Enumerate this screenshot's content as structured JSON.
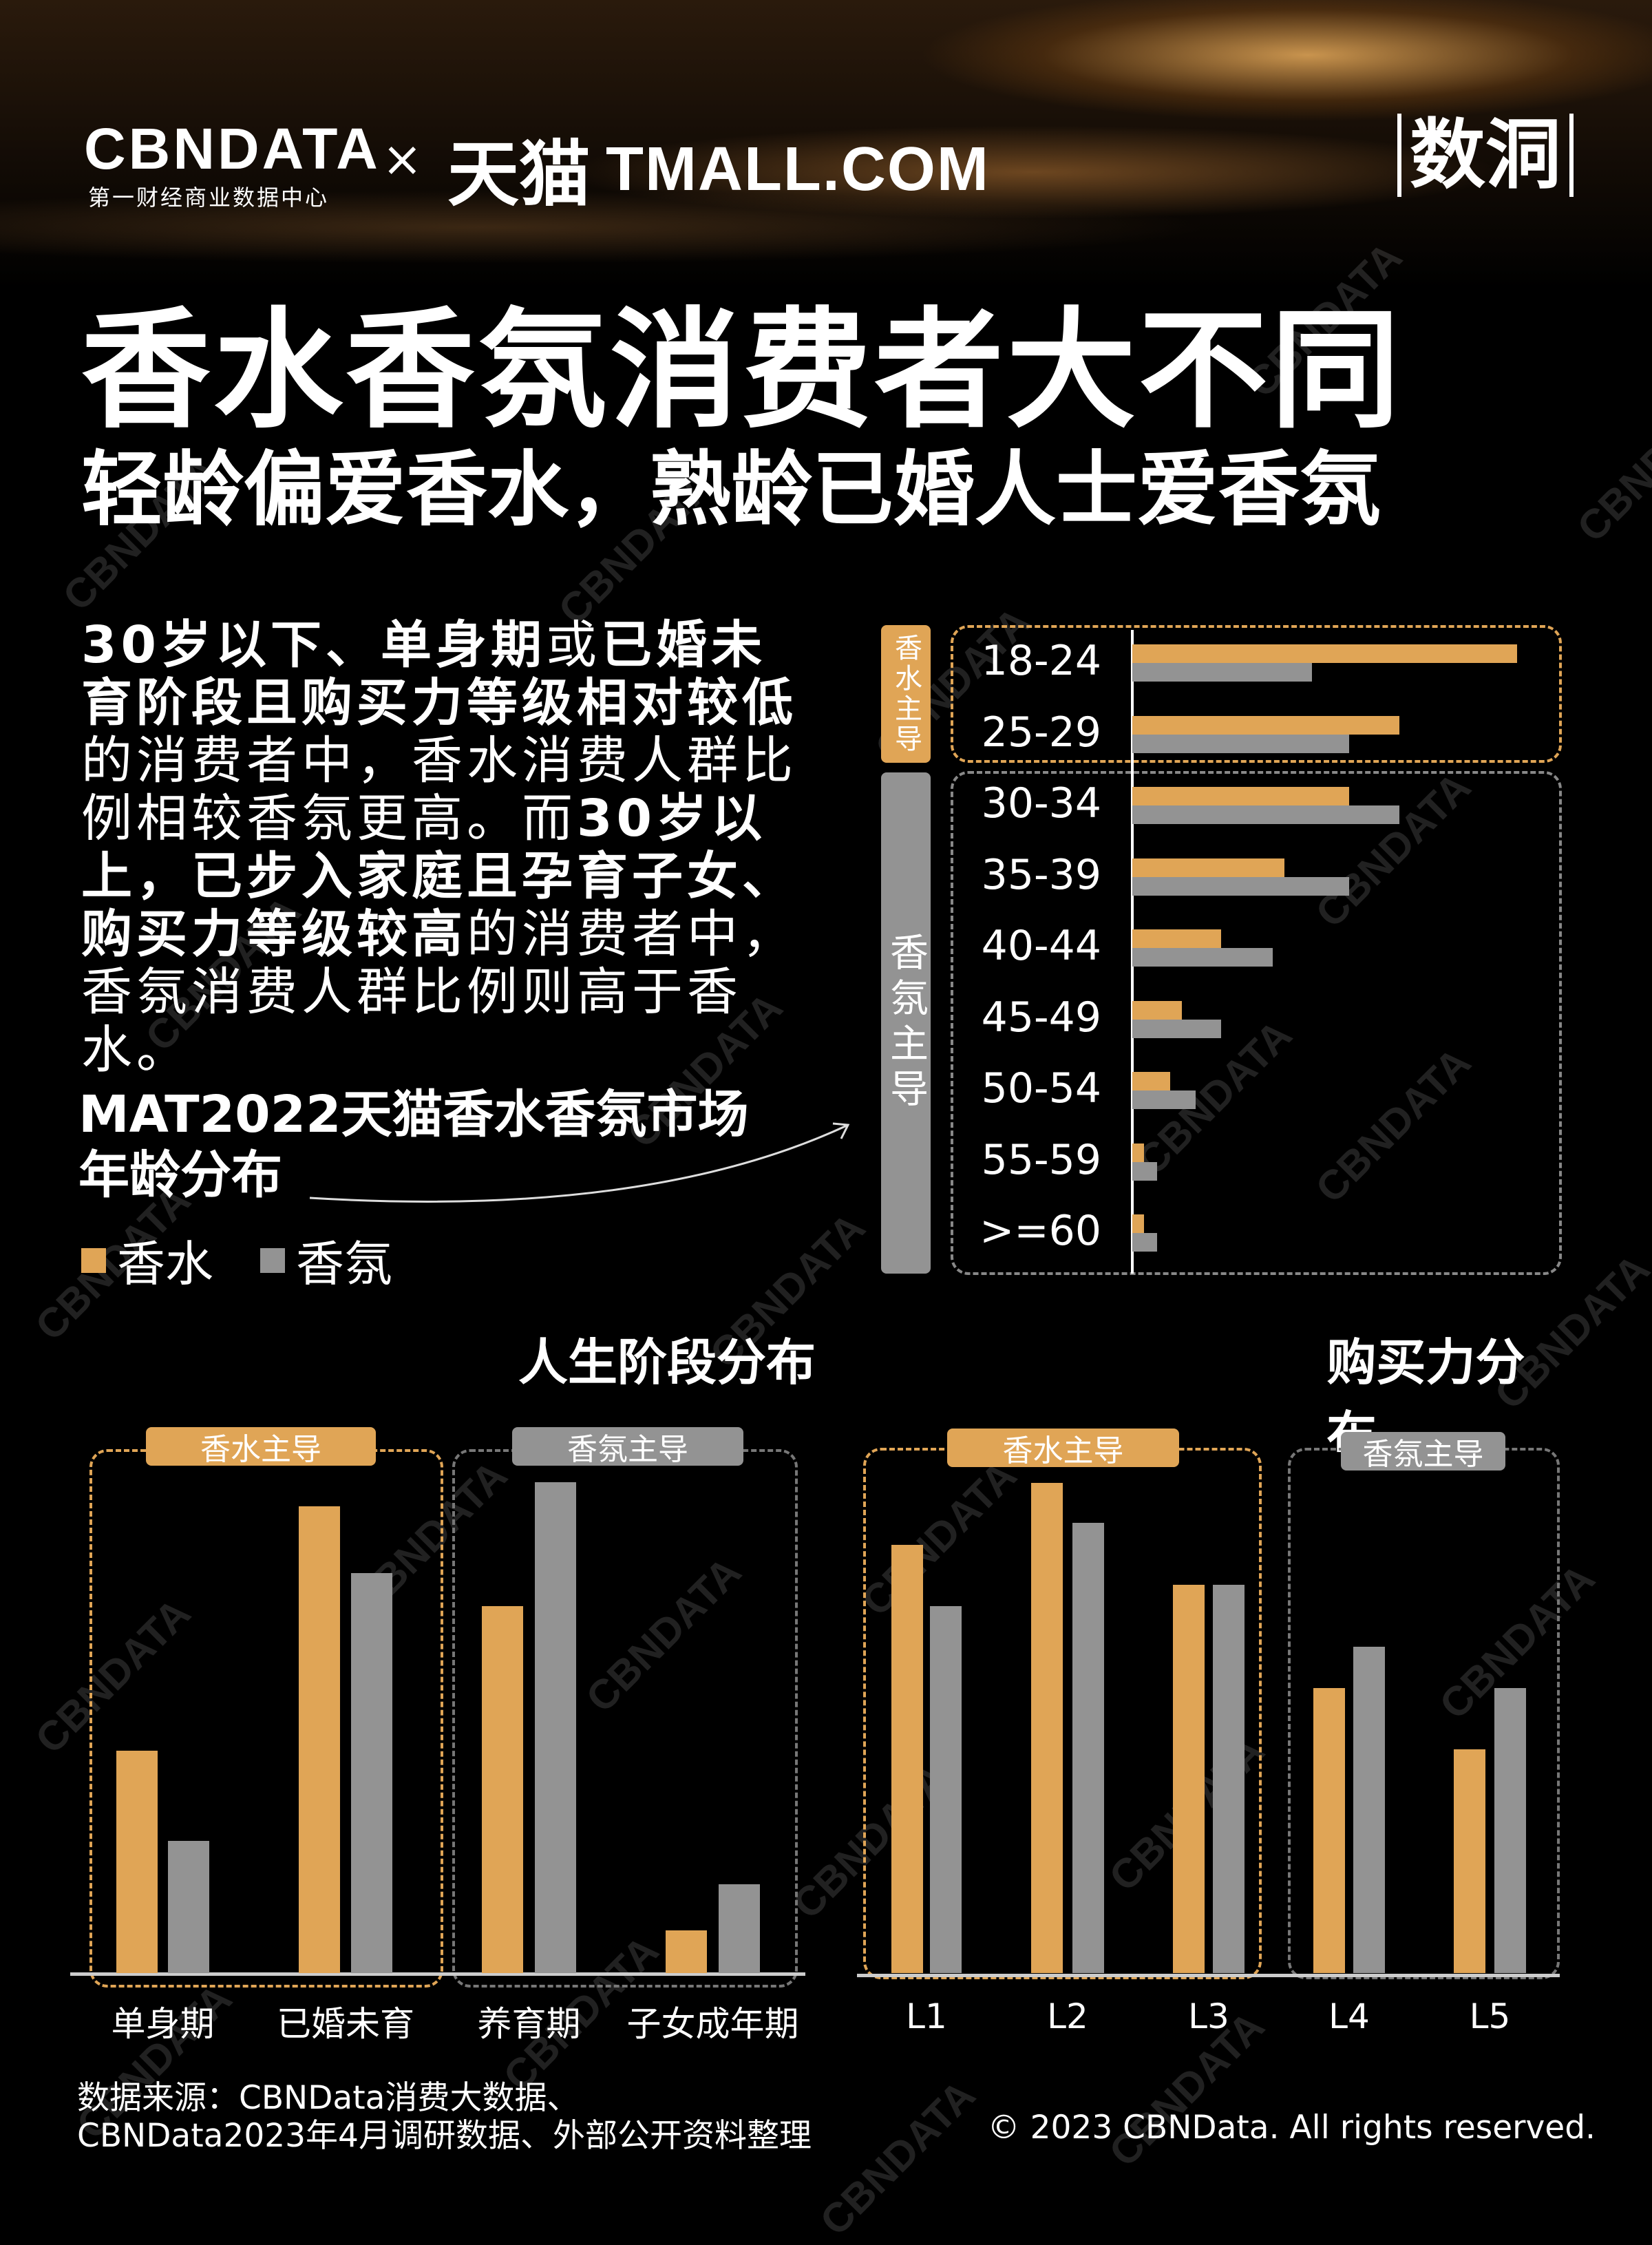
{
  "header": {
    "logo_cbndata": "CBNDATA",
    "logo_cbndata_sub": "第一财经商业数据中心",
    "times": "×",
    "logo_tmall": "天猫",
    "logo_tmall_en": "TMALL.COM",
    "logo_shudong": "数洞"
  },
  "title": {
    "line1": "香水香氛消费者大不同",
    "line2": "轻龄偏爱香水，熟龄已婚人士爱香氛"
  },
  "paragraph": [
    {
      "t": "30岁以下、单身期",
      "b": true
    },
    {
      "t": "或",
      "b": false
    },
    {
      "t": "已婚未育阶段且购买力等级相对较低",
      "b": true
    },
    {
      "t": "的消费者中，香水消费人群比例相较香氛更高。而",
      "b": false
    },
    {
      "t": "30岁以上，已步入家庭且孕育子女、购买力等级较高",
      "b": true
    },
    {
      "t": "的消费者中，香氛消费人群比例则高于香水。",
      "b": false
    }
  ],
  "colors": {
    "perfume": "#e0a556",
    "fragrance": "#939393",
    "background": "#000000"
  },
  "chart_data": [
    {
      "type": "bar",
      "orientation": "horizontal",
      "title": "MAT2022天猫香水香氛市场年龄分布",
      "legend": [
        "香水",
        "香氛"
      ],
      "legend_placement": "left",
      "categories": [
        "18-24",
        "25-29",
        "30-34",
        "35-39",
        "40-44",
        "45-49",
        "50-54",
        "55-59",
        ">=60"
      ],
      "series": [
        {
          "name": "香水",
          "values": [
            100,
            69.4,
            56.3,
            39.5,
            23.1,
            12.9,
            9.9,
            3,
            3
          ]
        },
        {
          "name": "香氛",
          "values": [
            46.7,
            56.3,
            69.4,
            56.3,
            36.5,
            23.1,
            16.4,
            6.5,
            6.5
          ]
        }
      ],
      "groups": [
        {
          "label": "香水主导",
          "categories": [
            "18-24",
            "25-29"
          ]
        },
        {
          "label": "香氛主导",
          "categories": [
            "30-34",
            "35-39",
            "40-44",
            "45-49",
            "50-54",
            "55-59",
            ">=60"
          ]
        }
      ],
      "axis_labels_shown": false
    },
    {
      "type": "bar",
      "title": "人生阶段分布",
      "categories": [
        "单身期",
        "已婚未育",
        "养育期",
        "子女成年期"
      ],
      "series": [
        {
          "name": "香水",
          "values": [
            44.8,
            94.2,
            74,
            8.6
          ]
        },
        {
          "name": "香氛",
          "values": [
            26.7,
            80.7,
            99,
            17.9
          ]
        }
      ],
      "groups": [
        {
          "label": "香水主导",
          "categories": [
            "单身期",
            "已婚未育"
          ]
        },
        {
          "label": "香氛主导",
          "categories": [
            "养育期",
            "子女成年期"
          ]
        }
      ]
    },
    {
      "type": "bar",
      "title": "购买力分布",
      "categories": [
        "L1",
        "L2",
        "L3",
        "L4",
        "L5"
      ],
      "series": [
        {
          "name": "香水",
          "values": [
            87.4,
            100,
            79.2,
            58.1,
            45.6
          ]
        },
        {
          "name": "香氛",
          "values": [
            74.9,
            91.8,
            79.2,
            66.6,
            58.1
          ]
        }
      ],
      "groups": [
        {
          "label": "香水主导",
          "categories": [
            "L1",
            "L2",
            "L3"
          ]
        },
        {
          "label": "香氛主导",
          "categories": [
            "L4",
            "L5"
          ]
        }
      ]
    }
  ],
  "footer": {
    "source1": "数据来源：CBNData消费大数据、",
    "source2": "CBNData2023年4月调研数据、外部公开资料整理",
    "copyright": "© 2023 CBNData. All rights reserved."
  },
  "watermark": "CBNDATA"
}
